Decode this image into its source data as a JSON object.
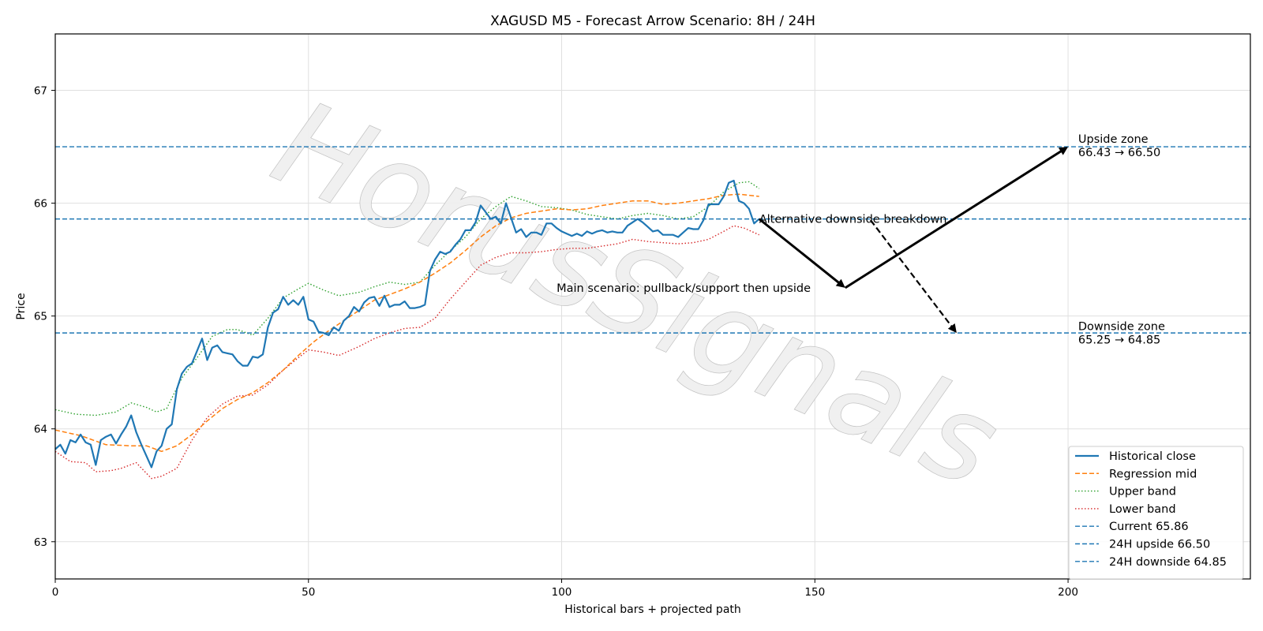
{
  "chart_data": {
    "type": "line",
    "title": "XAGUSD M5 - Forecast Arrow Scenario: 8H / 24H",
    "xlabel": "Historical bars + projected path",
    "ylabel": "Price",
    "xlim": [
      0,
      236
    ],
    "ylim": [
      62.67,
      67.5
    ],
    "xticks": [
      0,
      50,
      100,
      150,
      200
    ],
    "yticks": [
      63,
      64,
      65,
      66,
      67
    ],
    "grid": true,
    "legend_position": "lower-right",
    "watermark": "HorusSignals",
    "colors": {
      "close": "#1f77b4",
      "mid": "#ff7f0e",
      "upper": "#2ca02c",
      "lower": "#d62728",
      "hline": "#1f77b4",
      "arrow": "#000000"
    },
    "series": [
      {
        "name": "Historical close",
        "style": "solid",
        "points": [
          [
            0,
            63.82
          ],
          [
            1,
            63.86
          ],
          [
            2,
            63.78
          ],
          [
            3,
            63.9
          ],
          [
            4,
            63.88
          ],
          [
            5,
            63.95
          ],
          [
            6,
            63.88
          ],
          [
            7,
            63.86
          ],
          [
            8,
            63.68
          ],
          [
            9,
            63.9
          ],
          [
            10,
            63.93
          ],
          [
            11,
            63.95
          ],
          [
            12,
            63.87
          ],
          [
            13,
            63.95
          ],
          [
            14,
            64.02
          ],
          [
            15,
            64.12
          ],
          [
            16,
            63.97
          ],
          [
            17,
            63.86
          ],
          [
            18,
            63.76
          ],
          [
            19,
            63.66
          ],
          [
            20,
            63.8
          ],
          [
            21,
            63.85
          ],
          [
            22,
            64.0
          ],
          [
            23,
            64.04
          ],
          [
            24,
            64.35
          ],
          [
            25,
            64.49
          ],
          [
            26,
            64.55
          ],
          [
            27,
            64.58
          ],
          [
            28,
            64.69
          ],
          [
            29,
            64.8
          ],
          [
            30,
            64.61
          ],
          [
            31,
            64.72
          ],
          [
            32,
            64.74
          ],
          [
            33,
            64.68
          ],
          [
            34,
            64.67
          ],
          [
            35,
            64.66
          ],
          [
            36,
            64.6
          ],
          [
            37,
            64.56
          ],
          [
            38,
            64.56
          ],
          [
            39,
            64.64
          ],
          [
            40,
            64.63
          ],
          [
            41,
            64.66
          ],
          [
            42,
            64.9
          ],
          [
            43,
            65.03
          ],
          [
            44,
            65.06
          ],
          [
            45,
            65.17
          ],
          [
            46,
            65.1
          ],
          [
            47,
            65.14
          ],
          [
            48,
            65.1
          ],
          [
            49,
            65.17
          ],
          [
            50,
            64.97
          ],
          [
            51,
            64.95
          ],
          [
            52,
            64.86
          ],
          [
            53,
            64.85
          ],
          [
            54,
            64.83
          ],
          [
            55,
            64.9
          ],
          [
            56,
            64.87
          ],
          [
            57,
            64.96
          ],
          [
            58,
            65.0
          ],
          [
            59,
            65.08
          ],
          [
            60,
            65.04
          ],
          [
            61,
            65.12
          ],
          [
            62,
            65.16
          ],
          [
            63,
            65.17
          ],
          [
            64,
            65.09
          ],
          [
            65,
            65.18
          ],
          [
            66,
            65.08
          ],
          [
            67,
            65.1
          ],
          [
            68,
            65.1
          ],
          [
            69,
            65.13
          ],
          [
            70,
            65.07
          ],
          [
            71,
            65.07
          ],
          [
            72,
            65.08
          ],
          [
            73,
            65.1
          ],
          [
            74,
            65.4
          ],
          [
            75,
            65.5
          ],
          [
            76,
            65.57
          ],
          [
            77,
            65.55
          ],
          [
            78,
            65.57
          ],
          [
            79,
            65.63
          ],
          [
            80,
            65.68
          ],
          [
            81,
            65.76
          ],
          [
            82,
            65.76
          ],
          [
            83,
            65.83
          ],
          [
            84,
            65.98
          ],
          [
            85,
            65.92
          ],
          [
            86,
            65.86
          ],
          [
            87,
            65.88
          ],
          [
            88,
            65.82
          ],
          [
            89,
            66.0
          ],
          [
            90,
            65.87
          ],
          [
            91,
            65.74
          ],
          [
            92,
            65.77
          ],
          [
            93,
            65.7
          ],
          [
            94,
            65.74
          ],
          [
            95,
            65.74
          ],
          [
            96,
            65.72
          ],
          [
            97,
            65.82
          ],
          [
            98,
            65.82
          ],
          [
            99,
            65.78
          ],
          [
            100,
            65.75
          ],
          [
            101,
            65.73
          ],
          [
            102,
            65.71
          ],
          [
            103,
            65.73
          ],
          [
            104,
            65.71
          ],
          [
            105,
            65.75
          ],
          [
            106,
            65.73
          ],
          [
            107,
            65.75
          ],
          [
            108,
            65.76
          ],
          [
            109,
            65.74
          ],
          [
            110,
            65.75
          ],
          [
            111,
            65.74
          ],
          [
            112,
            65.74
          ],
          [
            113,
            65.8
          ],
          [
            114,
            65.83
          ],
          [
            115,
            65.86
          ],
          [
            116,
            65.83
          ],
          [
            117,
            65.79
          ],
          [
            118,
            65.75
          ],
          [
            119,
            65.76
          ],
          [
            120,
            65.72
          ],
          [
            121,
            65.72
          ],
          [
            122,
            65.72
          ],
          [
            123,
            65.7
          ],
          [
            124,
            65.74
          ],
          [
            125,
            65.78
          ],
          [
            126,
            65.77
          ],
          [
            127,
            65.77
          ],
          [
            128,
            65.85
          ],
          [
            129,
            65.99
          ],
          [
            130,
            65.99
          ],
          [
            131,
            65.99
          ],
          [
            132,
            66.06
          ],
          [
            133,
            66.18
          ],
          [
            134,
            66.2
          ],
          [
            135,
            66.02
          ],
          [
            136,
            66.0
          ],
          [
            137,
            65.95
          ],
          [
            138,
            65.82
          ],
          [
            139,
            65.86
          ]
        ]
      },
      {
        "name": "Regression mid",
        "style": "dashed",
        "points": [
          [
            0,
            63.99
          ],
          [
            5,
            63.94
          ],
          [
            10,
            63.86
          ],
          [
            15,
            63.85
          ],
          [
            18,
            63.85
          ],
          [
            21,
            63.8
          ],
          [
            24,
            63.85
          ],
          [
            27,
            63.95
          ],
          [
            30,
            64.07
          ],
          [
            33,
            64.18
          ],
          [
            36,
            64.26
          ],
          [
            39,
            64.32
          ],
          [
            42,
            64.41
          ],
          [
            45,
            64.52
          ],
          [
            48,
            64.65
          ],
          [
            51,
            64.77
          ],
          [
            54,
            64.87
          ],
          [
            57,
            64.96
          ],
          [
            60,
            65.05
          ],
          [
            63,
            65.14
          ],
          [
            66,
            65.19
          ],
          [
            69,
            65.24
          ],
          [
            72,
            65.3
          ],
          [
            75,
            65.38
          ],
          [
            78,
            65.47
          ],
          [
            81,
            65.58
          ],
          [
            84,
            65.7
          ],
          [
            87,
            65.8
          ],
          [
            90,
            65.87
          ],
          [
            93,
            65.91
          ],
          [
            96,
            65.93
          ],
          [
            99,
            65.95
          ],
          [
            102,
            65.94
          ],
          [
            105,
            65.95
          ],
          [
            108,
            65.98
          ],
          [
            111,
            66.0
          ],
          [
            114,
            66.02
          ],
          [
            117,
            66.02
          ],
          [
            120,
            65.99
          ],
          [
            123,
            66.0
          ],
          [
            126,
            66.02
          ],
          [
            129,
            66.04
          ],
          [
            132,
            66.07
          ],
          [
            135,
            66.08
          ],
          [
            139,
            66.06
          ]
        ]
      },
      {
        "name": "Upper band",
        "style": "dotted",
        "points": [
          [
            0,
            64.17
          ],
          [
            4,
            64.13
          ],
          [
            8,
            64.12
          ],
          [
            12,
            64.15
          ],
          [
            15,
            64.23
          ],
          [
            18,
            64.19
          ],
          [
            20,
            64.15
          ],
          [
            22,
            64.18
          ],
          [
            25,
            64.45
          ],
          [
            28,
            64.63
          ],
          [
            31,
            64.82
          ],
          [
            34,
            64.88
          ],
          [
            36,
            64.88
          ],
          [
            39,
            64.83
          ],
          [
            42,
            64.98
          ],
          [
            45,
            65.16
          ],
          [
            48,
            65.24
          ],
          [
            50,
            65.29
          ],
          [
            53,
            65.23
          ],
          [
            56,
            65.18
          ],
          [
            60,
            65.21
          ],
          [
            63,
            65.26
          ],
          [
            66,
            65.3
          ],
          [
            69,
            65.28
          ],
          [
            72,
            65.3
          ],
          [
            75,
            65.45
          ],
          [
            78,
            65.58
          ],
          [
            81,
            65.7
          ],
          [
            84,
            65.86
          ],
          [
            87,
            65.97
          ],
          [
            90,
            66.06
          ],
          [
            93,
            66.02
          ],
          [
            96,
            65.97
          ],
          [
            99,
            65.96
          ],
          [
            102,
            65.94
          ],
          [
            105,
            65.9
          ],
          [
            108,
            65.88
          ],
          [
            111,
            65.86
          ],
          [
            114,
            65.89
          ],
          [
            117,
            65.91
          ],
          [
            120,
            65.89
          ],
          [
            123,
            65.86
          ],
          [
            126,
            65.88
          ],
          [
            129,
            65.97
          ],
          [
            132,
            66.1
          ],
          [
            135,
            66.18
          ],
          [
            137,
            66.19
          ],
          [
            139,
            66.13
          ]
        ]
      },
      {
        "name": "Lower band",
        "style": "dotted",
        "points": [
          [
            0,
            63.8
          ],
          [
            3,
            63.71
          ],
          [
            6,
            63.7
          ],
          [
            8,
            63.62
          ],
          [
            11,
            63.63
          ],
          [
            13,
            63.65
          ],
          [
            16,
            63.7
          ],
          [
            19,
            63.56
          ],
          [
            21,
            63.58
          ],
          [
            24,
            63.65
          ],
          [
            27,
            63.9
          ],
          [
            30,
            64.1
          ],
          [
            33,
            64.22
          ],
          [
            36,
            64.29
          ],
          [
            39,
            64.3
          ],
          [
            42,
            64.39
          ],
          [
            45,
            64.52
          ],
          [
            48,
            64.63
          ],
          [
            50,
            64.7
          ],
          [
            53,
            64.68
          ],
          [
            56,
            64.65
          ],
          [
            60,
            64.73
          ],
          [
            63,
            64.8
          ],
          [
            66,
            64.85
          ],
          [
            69,
            64.89
          ],
          [
            72,
            64.9
          ],
          [
            75,
            64.98
          ],
          [
            78,
            65.15
          ],
          [
            81,
            65.3
          ],
          [
            84,
            65.45
          ],
          [
            87,
            65.52
          ],
          [
            90,
            65.56
          ],
          [
            93,
            65.56
          ],
          [
            96,
            65.57
          ],
          [
            99,
            65.59
          ],
          [
            102,
            65.6
          ],
          [
            105,
            65.6
          ],
          [
            108,
            65.62
          ],
          [
            111,
            65.64
          ],
          [
            114,
            65.68
          ],
          [
            117,
            65.66
          ],
          [
            120,
            65.65
          ],
          [
            123,
            65.64
          ],
          [
            126,
            65.65
          ],
          [
            129,
            65.68
          ],
          [
            132,
            65.75
          ],
          [
            134,
            65.8
          ],
          [
            136,
            65.78
          ],
          [
            139,
            65.72
          ]
        ]
      }
    ],
    "hlines": [
      {
        "name": "Current 65.86",
        "y": 65.86
      },
      {
        "name": "24H upside 66.50",
        "y": 66.5
      },
      {
        "name": "24H downside 64.85",
        "y": 64.85
      }
    ],
    "arrows": [
      {
        "from": [
          139,
          65.86
        ],
        "to": [
          156,
          65.25
        ],
        "style": "solid"
      },
      {
        "from": [
          156,
          65.25
        ],
        "to": [
          200,
          66.5
        ],
        "style": "solid"
      },
      {
        "from": [
          161,
          65.85
        ],
        "to": [
          178,
          64.85
        ],
        "style": "dashed"
      }
    ],
    "annotations": [
      {
        "text": "Main scenario: pullback/support then upside",
        "x": 99,
        "y": 65.25
      },
      {
        "text": "Alternative downside breakdown",
        "x": 139,
        "y": 65.86
      },
      {
        "text": "Upside zone",
        "x": 202,
        "y": 66.57
      },
      {
        "text": "66.43 → 66.50",
        "x": 202,
        "y": 66.45
      },
      {
        "text": "Downside zone",
        "x": 202,
        "y": 64.91
      },
      {
        "text": "65.25 → 64.85",
        "x": 202,
        "y": 64.79
      }
    ]
  }
}
